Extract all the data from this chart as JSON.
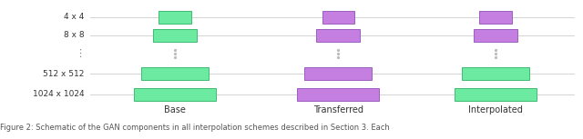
{
  "row_labels": [
    "4 x 4",
    "8 x 8",
    "⋮",
    "512 x 512",
    "1024 x 1024"
  ],
  "col_labels": [
    "Base",
    "Transferred",
    "Interpolated"
  ],
  "background_color": "#ffffff",
  "green_face": "#6deaa1",
  "green_edge": "#3dbd70",
  "purple_face": "#c47fe0",
  "purple_edge": "#9b5fc0",
  "bar_height": 0.6,
  "dots_color": "#bbbbbb",
  "line_color": "#cccccc",
  "label_fontsize": 7,
  "tick_fontsize": 6.5,
  "caption_fontsize": 6,
  "caption": "Figure 2: Schematic of the GAN components in all interpolation schemes described in Section 3. Each"
}
